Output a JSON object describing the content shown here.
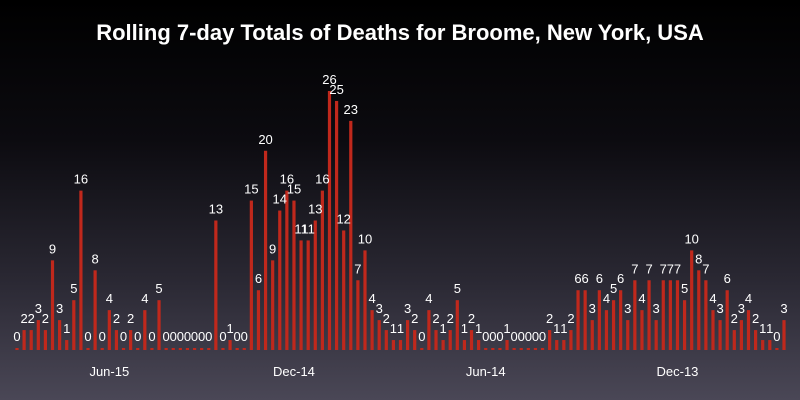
{
  "chart_data": {
    "type": "bar",
    "title": "Rolling 7-day Totals of Deaths for Broome, New York, USA",
    "xlabel": "",
    "ylabel": "",
    "ylim": [
      0,
      26
    ],
    "x_ticks": [
      {
        "label": "Jun-15",
        "index": 13
      },
      {
        "label": "Dec-14",
        "index": 39
      },
      {
        "label": "Jun-14",
        "index": 66
      },
      {
        "label": "Dec-13",
        "index": 93
      }
    ],
    "values": [
      0,
      2,
      2,
      3,
      2,
      9,
      3,
      1,
      5,
      16,
      0,
      8,
      0,
      4,
      2,
      0,
      2,
      0,
      4,
      0,
      5,
      0,
      0,
      0,
      0,
      0,
      0,
      0,
      13,
      0,
      1,
      0,
      0,
      15,
      6,
      20,
      9,
      14,
      16,
      15,
      11,
      11,
      13,
      16,
      26,
      25,
      12,
      23,
      7,
      10,
      4,
      3,
      2,
      1,
      1,
      3,
      2,
      0,
      4,
      2,
      1,
      2,
      5,
      1,
      2,
      1,
      0,
      0,
      0,
      1,
      0,
      0,
      0,
      0,
      0,
      2,
      1,
      1,
      2,
      6,
      6,
      3,
      6,
      4,
      5,
      6,
      3,
      7,
      4,
      7,
      3,
      7,
      7,
      7,
      5,
      10,
      8,
      7,
      4,
      3,
      6,
      2,
      3,
      4,
      2,
      1,
      1,
      0,
      3
    ],
    "bar_color": "#c0281c",
    "label_color": "#ffffff",
    "grid": false,
    "legend": "none"
  }
}
